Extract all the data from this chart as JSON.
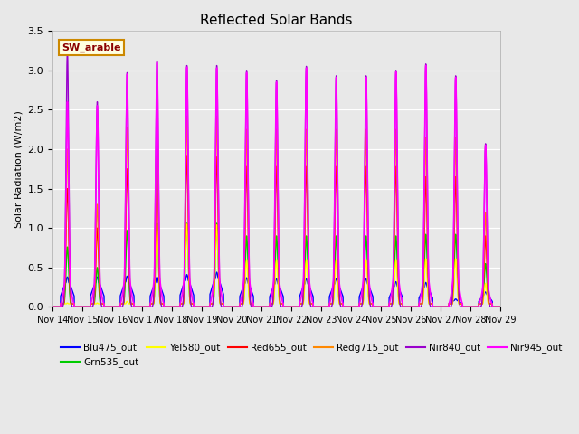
{
  "title": "Reflected Solar Bands",
  "ylabel": "Solar Radiation (W/m2)",
  "annotation": "SW_arable",
  "ylim": [
    0,
    3.5
  ],
  "n_days": 15,
  "xtick_labels": [
    "Nov 14",
    "Nov 15",
    "Nov 16",
    "Nov 17",
    "Nov 18",
    "Nov 19",
    "Nov 20",
    "Nov 21",
    "Nov 22",
    "Nov 23",
    "Nov 24",
    "Nov 25",
    "Nov 26",
    "Nov 27",
    "Nov 28",
    "Nov 29"
  ],
  "series_order": [
    "Blu475_out",
    "Grn535_out",
    "Yel580_out",
    "Red655_out",
    "Redg715_out",
    "Nir840_out",
    "Nir945_out"
  ],
  "legend_order": [
    "Blu475_out",
    "Grn535_out",
    "Yel580_out",
    "Red655_out",
    "Redg715_out",
    "Nir840_out",
    "Nir945_out"
  ],
  "series": {
    "Blu475_out": {
      "color": "#0000ff",
      "lw": 1.0
    },
    "Grn535_out": {
      "color": "#00cc00",
      "lw": 1.0
    },
    "Yel580_out": {
      "color": "#ffff00",
      "lw": 1.0
    },
    "Red655_out": {
      "color": "#ff0000",
      "lw": 1.0
    },
    "Redg715_out": {
      "color": "#ff8800",
      "lw": 1.0
    },
    "Nir840_out": {
      "color": "#9900cc",
      "lw": 1.0
    },
    "Nir945_out": {
      "color": "#ff00ff",
      "lw": 1.2
    }
  },
  "day_peaks": {
    "Nir840_out": [
      3.25,
      2.6,
      2.97,
      3.12,
      3.06,
      3.06,
      3.0,
      2.87,
      3.05,
      2.93,
      2.93,
      3.0,
      3.08,
      2.93,
      2.07
    ],
    "Nir945_out": [
      2.6,
      2.55,
      2.95,
      3.1,
      3.04,
      3.03,
      2.97,
      2.85,
      3.03,
      2.91,
      2.91,
      2.98,
      3.06,
      2.91,
      2.05
    ],
    "Redg715_out": [
      2.0,
      1.3,
      2.28,
      2.42,
      2.42,
      2.42,
      2.25,
      2.25,
      2.25,
      2.25,
      2.25,
      2.25,
      2.15,
      2.15,
      1.2
    ],
    "Red655_out": [
      1.5,
      1.0,
      1.75,
      1.88,
      1.92,
      1.9,
      1.78,
      1.78,
      1.78,
      1.78,
      1.78,
      1.78,
      1.65,
      1.65,
      0.9
    ],
    "Grn535_out": [
      0.76,
      0.5,
      0.97,
      1.06,
      1.06,
      1.06,
      0.9,
      0.9,
      0.9,
      0.9,
      0.9,
      0.9,
      0.92,
      0.92,
      0.55
    ],
    "Yel580_out": [
      0.05,
      0.05,
      0.07,
      1.05,
      1.05,
      1.04,
      0.59,
      0.59,
      0.59,
      0.59,
      0.59,
      0.59,
      0.61,
      0.61,
      0.3
    ],
    "Blu475_out": [
      0.38,
      0.38,
      0.39,
      0.38,
      0.41,
      0.44,
      0.37,
      0.36,
      0.36,
      0.36,
      0.36,
      0.32,
      0.31,
      0.1,
      0.19
    ]
  },
  "plot_bg_color": "#e8e8e8",
  "fig_bg_color": "#e8e8e8",
  "title_fontsize": 11,
  "figsize": [
    6.4,
    4.8
  ],
  "dpi": 100
}
